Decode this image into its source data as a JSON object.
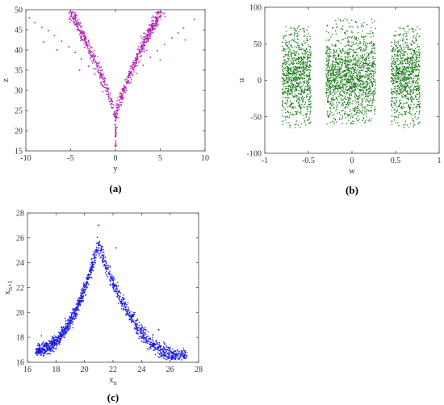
{
  "chart_data": [
    {
      "id": "a",
      "type": "scatter",
      "caption": "(a)",
      "xlabel": "y",
      "ylabel": "z",
      "xlim": [
        -10,
        10
      ],
      "ylim": [
        15,
        50
      ],
      "xticks": [
        "-10",
        "-5",
        "0",
        "5",
        "10"
      ],
      "yticks": [
        "15",
        "20",
        "25",
        "30",
        "35",
        "40",
        "45",
        "50"
      ],
      "xtick_values": [
        -10,
        -5,
        0,
        5,
        10
      ],
      "ytick_values": [
        15,
        20,
        25,
        30,
        35,
        40,
        45,
        50
      ],
      "grid": false,
      "color": "#b020b0",
      "series": [
        {
          "points": [
            [
              -9.6,
              48.0
            ],
            [
              -9.0,
              46.8
            ],
            [
              -8.2,
              45.6
            ],
            [
              -7.5,
              44.8
            ],
            [
              -6.8,
              43.6
            ],
            [
              -6.0,
              42.2
            ],
            [
              -5.2,
              40.8
            ],
            [
              -4.5,
              39.4
            ],
            [
              -3.8,
              37.8
            ],
            [
              -3.0,
              36.0
            ],
            [
              -2.3,
              34.0
            ],
            [
              -1.6,
              31.6
            ],
            [
              -1.0,
              29.0
            ],
            [
              -0.5,
              26.5
            ],
            [
              -0.2,
              24.0
            ],
            [
              0.0,
              22.5
            ],
            [
              0.0,
              20.0
            ],
            [
              0.0,
              18.5
            ],
            [
              0.2,
              24.2
            ],
            [
              0.6,
              27.0
            ],
            [
              1.1,
              29.5
            ],
            [
              1.7,
              32.0
            ],
            [
              2.4,
              34.2
            ],
            [
              3.1,
              36.2
            ],
            [
              3.9,
              38.2
            ],
            [
              4.7,
              39.8
            ],
            [
              5.5,
              41.4
            ],
            [
              6.3,
              43.0
            ],
            [
              7.0,
              44.2
            ],
            [
              7.6,
              45.4
            ],
            [
              8.8,
              47.6
            ],
            [
              -6.5,
              40.0
            ],
            [
              -4.0,
              35.0
            ],
            [
              5.0,
              37.5
            ],
            [
              -8.0,
              42.0
            ],
            [
              7.8,
              42.5
            ]
          ]
        }
      ]
    },
    {
      "id": "b",
      "type": "scatter",
      "caption": "(b)",
      "xlabel": "w",
      "ylabel": "u",
      "xlim": [
        -1,
        1
      ],
      "ylim": [
        -100,
        100
      ],
      "xticks": [
        "-1",
        "-0.5",
        "0",
        "0.5",
        "1"
      ],
      "yticks": [
        "-100",
        "-50",
        "0",
        "50",
        "100"
      ],
      "xtick_values": [
        -1,
        -0.5,
        0,
        0.5,
        1
      ],
      "ytick_values": [
        -100,
        -50,
        0,
        50,
        100
      ],
      "grid": false,
      "color": "#1a7a1a",
      "clusters": [
        {
          "w_range": [
            -0.8,
            -0.47
          ],
          "u_range": [
            -65,
            75
          ]
        },
        {
          "w_range": [
            -0.3,
            0.27
          ],
          "u_range": [
            -60,
            85
          ]
        },
        {
          "w_range": [
            0.45,
            0.78
          ],
          "u_range": [
            -65,
            75
          ]
        }
      ]
    },
    {
      "id": "c",
      "type": "scatter",
      "caption": "(c)",
      "xlabel": "x",
      "xlabel_sub": "n",
      "ylabel": "x",
      "ylabel_sub": "n+1",
      "xlim": [
        16,
        28
      ],
      "ylim": [
        16,
        28
      ],
      "xticks": [
        "16",
        "18",
        "20",
        "22",
        "24",
        "26",
        "28"
      ],
      "yticks": [
        "16",
        "18",
        "20",
        "22",
        "24",
        "26",
        "28"
      ],
      "xtick_values": [
        16,
        18,
        20,
        22,
        24,
        26,
        28
      ],
      "ytick_values": [
        16,
        18,
        20,
        22,
        24,
        26,
        28
      ],
      "grid": false,
      "color": "#1a1ae0",
      "series": [
        {
          "points": [
            [
              16.6,
              16.8
            ],
            [
              17.2,
              17.4
            ],
            [
              17.8,
              18.0
            ],
            [
              18.4,
              18.6
            ],
            [
              19.0,
              19.3
            ],
            [
              19.6,
              20.2
            ],
            [
              20.1,
              21.4
            ],
            [
              20.5,
              22.8
            ],
            [
              20.8,
              24.4
            ],
            [
              20.95,
              25.6
            ],
            [
              21.0,
              27.0
            ],
            [
              21.2,
              25.0
            ],
            [
              21.5,
              23.6
            ],
            [
              22.0,
              22.0
            ],
            [
              22.6,
              20.8
            ],
            [
              23.3,
              19.8
            ],
            [
              24.0,
              19.0
            ],
            [
              24.8,
              18.2
            ],
            [
              25.6,
              17.5
            ],
            [
              26.3,
              16.9
            ],
            [
              27.0,
              16.5
            ],
            [
              22.2,
              25.2
            ],
            [
              25.2,
              18.6
            ]
          ]
        }
      ]
    }
  ]
}
